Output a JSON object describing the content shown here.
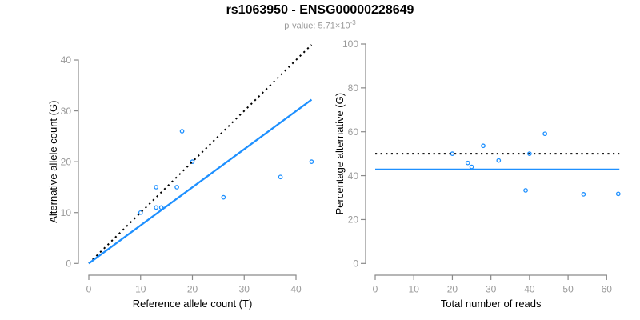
{
  "header": {
    "title": "rs1063950 - ENSG00000228649",
    "pvalue_prefix": "p-value: 5.71×10",
    "pvalue_exponent": "-3"
  },
  "colors": {
    "point_blue": "#1E90FF",
    "fit_line_blue": "#1E90FF",
    "dotted_line_black": "#000000",
    "axis_gray": "#8a8a8a",
    "tick_label_gray": "#9a9a9a",
    "axis_title_black": "#000000",
    "background": "#FFFFFF"
  },
  "chart_data": [
    {
      "type": "scatter",
      "panel": "left",
      "title": "",
      "xlabel": "Reference allele count (T)",
      "ylabel": "Alternative allele count (G)",
      "xticks": [
        0,
        10,
        20,
        30,
        40
      ],
      "yticks": [
        0,
        10,
        20,
        30,
        40
      ],
      "xlim": [
        -2,
        44.5
      ],
      "ylim": [
        -2.3,
        43
      ],
      "grid": false,
      "legend": "none",
      "points": [
        [
          10,
          10
        ],
        [
          13,
          11
        ],
        [
          14,
          11
        ],
        [
          13,
          15
        ],
        [
          17,
          15
        ],
        [
          18,
          26
        ],
        [
          20,
          20
        ],
        [
          26,
          13
        ],
        [
          37,
          17
        ],
        [
          43,
          20
        ]
      ],
      "lines": [
        {
          "name": "identity-line",
          "style": "dotted",
          "color": "#000000",
          "x1": 0,
          "y1": 0,
          "x2": 43,
          "y2": 43
        },
        {
          "name": "fit-line",
          "style": "solid",
          "color": "#1E90FF",
          "x1": 0,
          "y1": 0,
          "x2": 43,
          "y2": 32.2
        }
      ]
    },
    {
      "type": "scatter",
      "panel": "right",
      "title": "",
      "xlabel": "Total number of reads",
      "ylabel": "Percentage alternative (G)",
      "xticks": [
        0,
        10,
        20,
        30,
        40,
        50,
        60
      ],
      "yticks": [
        0,
        20,
        40,
        60,
        80,
        100
      ],
      "xlim": [
        -2.5,
        66
      ],
      "ylim": [
        -5,
        100
      ],
      "grid": false,
      "legend": "none",
      "points": [
        [
          20,
          50
        ],
        [
          24,
          45.8
        ],
        [
          25,
          44
        ],
        [
          28,
          53.6
        ],
        [
          32,
          46.9
        ],
        [
          39,
          33.3
        ],
        [
          40,
          50
        ],
        [
          44,
          59.1
        ],
        [
          54,
          31.5
        ],
        [
          63,
          31.7
        ]
      ],
      "lines": [
        {
          "name": "expected-50pct-line",
          "style": "dotted",
          "color": "#000000",
          "x1": 0,
          "y1": 50,
          "x2": 63.3,
          "y2": 50
        },
        {
          "name": "mean-alt-pct-line",
          "style": "solid",
          "color": "#1E90FF",
          "x1": 0,
          "y1": 42.8,
          "x2": 63.3,
          "y2": 42.8
        }
      ]
    }
  ]
}
